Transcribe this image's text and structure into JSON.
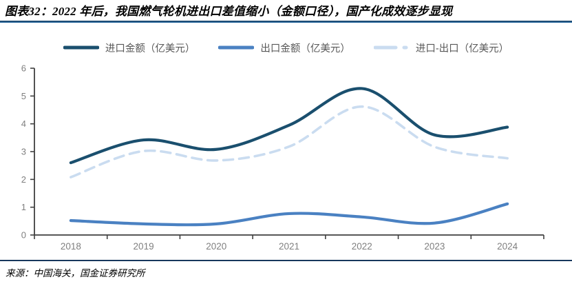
{
  "title": "图表32：2022 年后，我国燃气轮机进出口差值缩小（金额口径），国产化成效逐步显现",
  "source": "来源：中国海关，国金证券研究所",
  "colors": {
    "title_rule_top": "#14395c",
    "title_rule_bottom": "#2f74ad",
    "bottom_rule": "#17375d",
    "axis": "#3f3f3f",
    "tick_label": "#7f7f7f",
    "legend_text": "#595959"
  },
  "chart_data": {
    "type": "line",
    "title": "",
    "xlabel": "",
    "ylabel": "",
    "categories": [
      "2018",
      "2019",
      "2020",
      "2021",
      "2022",
      "2023",
      "2024"
    ],
    "series": [
      {
        "id": "import",
        "name": "进口金额（亿美元）",
        "color": "#1a4f6e",
        "style": "solid",
        "values": [
          2.6,
          3.42,
          3.08,
          3.95,
          5.27,
          3.6,
          3.88
        ]
      },
      {
        "id": "export",
        "name": "出口金额（亿美元）",
        "color": "#4a81c2",
        "style": "solid",
        "values": [
          0.52,
          0.4,
          0.4,
          0.77,
          0.65,
          0.43,
          1.12
        ]
      },
      {
        "id": "diff",
        "name": "进口-出口（亿美元）",
        "color": "#cadcf0",
        "style": "dashed",
        "values": [
          2.08,
          3.02,
          2.68,
          3.18,
          4.62,
          3.17,
          2.76
        ]
      }
    ],
    "ylim": [
      0,
      6
    ],
    "ytick_step": 1,
    "yticks": [
      0,
      1,
      2,
      3,
      4,
      5,
      6
    ],
    "grid": false,
    "legend_position": "top",
    "line_smoothing": "spline"
  }
}
